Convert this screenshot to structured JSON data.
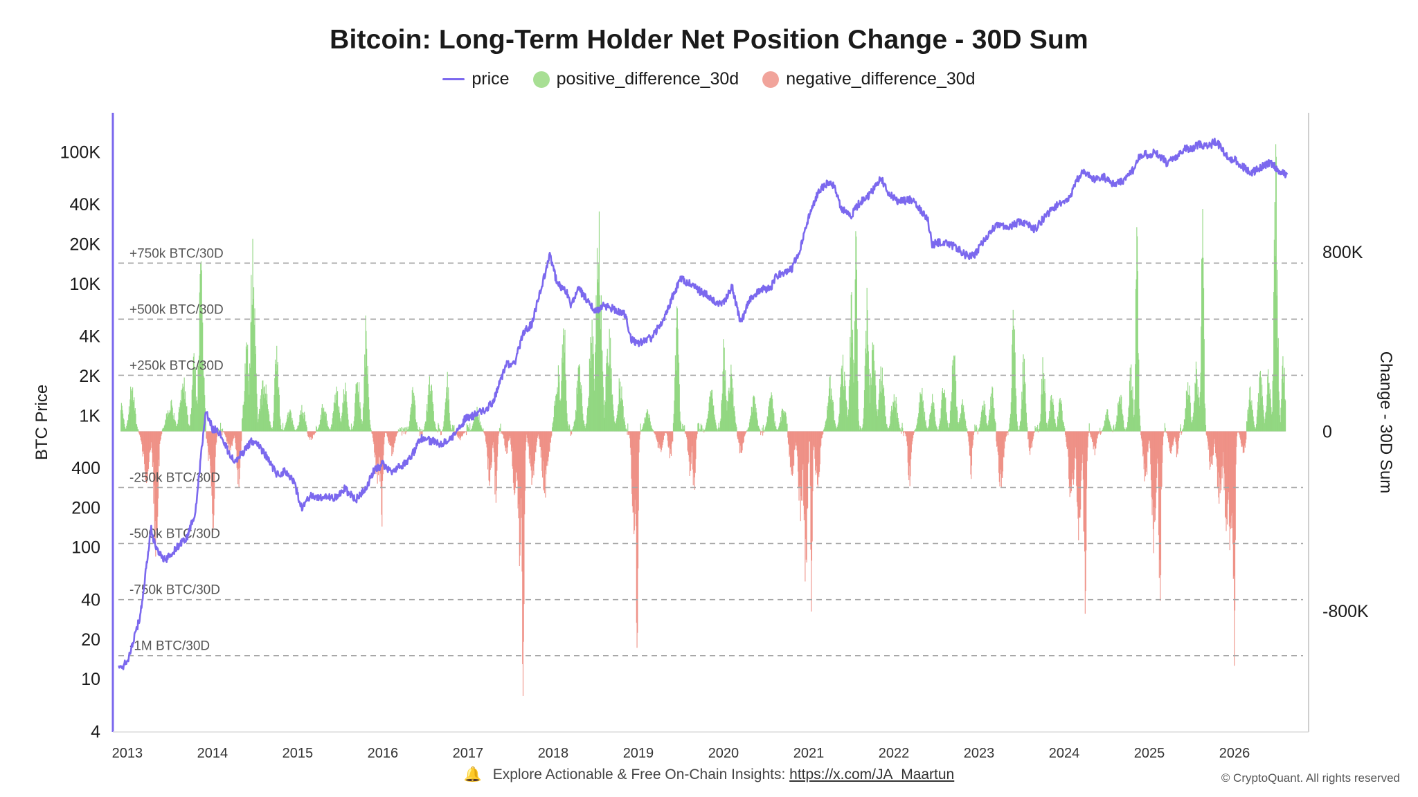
{
  "chart_data": {
    "type": "line+bar",
    "title": "Bitcoin: Long-Term Holder Net Position Change - 30D Sum",
    "legend": [
      {
        "name": "price",
        "color": "#7b68ee",
        "shape": "line"
      },
      {
        "name": "positive_difference_30d",
        "color": "#a8df94",
        "shape": "dot"
      },
      {
        "name": "negative_difference_30d",
        "color": "#f1a49b",
        "shape": "dot"
      }
    ],
    "left_axis": {
      "label": "BTC Price",
      "scale": "log",
      "range": [
        4,
        200000
      ],
      "ticks": [
        4,
        10,
        20,
        40,
        100,
        200,
        400,
        1000,
        2000,
        4000,
        10000,
        20000,
        40000,
        100000
      ],
      "tick_labels": [
        "4",
        "10",
        "20",
        "40",
        "100",
        "200",
        "400",
        "1K",
        "2K",
        "4K",
        "10K",
        "20K",
        "40K",
        "100K"
      ]
    },
    "right_axis": {
      "label": "Change - 30D Sum",
      "range": [
        -1340000,
        1420000
      ],
      "ticks": [
        800000,
        0,
        -800000
      ],
      "tick_labels": [
        "800K",
        "0",
        "-800K"
      ]
    },
    "x_axis": {
      "range": [
        2012.83,
        2026.87
      ],
      "ticks": [
        2013,
        2014,
        2015,
        2016,
        2017,
        2018,
        2019,
        2020,
        2021,
        2022,
        2023,
        2024,
        2025,
        2026
      ],
      "tick_labels": [
        "2013",
        "2014",
        "2015",
        "2016",
        "2017",
        "2018",
        "2019",
        "2020",
        "2021",
        "2022",
        "2023",
        "2024",
        "2025",
        "2026"
      ]
    },
    "reference_lines": [
      {
        "value": 750000,
        "label": "+750k BTC/30D"
      },
      {
        "value": 500000,
        "label": "+500k BTC/30D"
      },
      {
        "value": 250000,
        "label": "+250k BTC/30D"
      },
      {
        "value": -250000,
        "label": "-250k BTC/30D"
      },
      {
        "value": -500000,
        "label": "-500k BTC/30D"
      },
      {
        "value": -750000,
        "label": "-750k BTC/30D"
      },
      {
        "value": -1000000,
        "label": "-1M BTC/30D"
      }
    ],
    "price": [
      [
        2012.9,
        12
      ],
      [
        2013.0,
        13.5
      ],
      [
        2013.15,
        30
      ],
      [
        2013.28,
        140
      ],
      [
        2013.33,
        100
      ],
      [
        2013.45,
        80
      ],
      [
        2013.55,
        95
      ],
      [
        2013.7,
        120
      ],
      [
        2013.8,
        190
      ],
      [
        2013.85,
        400
      ],
      [
        2013.92,
        1100
      ],
      [
        2014.0,
        800
      ],
      [
        2014.08,
        750
      ],
      [
        2014.16,
        580
      ],
      [
        2014.25,
        450
      ],
      [
        2014.35,
        520
      ],
      [
        2014.45,
        640
      ],
      [
        2014.55,
        590
      ],
      [
        2014.65,
        470
      ],
      [
        2014.75,
        360
      ],
      [
        2014.85,
        380
      ],
      [
        2014.95,
        320
      ],
      [
        2015.05,
        200
      ],
      [
        2015.15,
        250
      ],
      [
        2015.3,
        240
      ],
      [
        2015.45,
        240
      ],
      [
        2015.55,
        280
      ],
      [
        2015.68,
        230
      ],
      [
        2015.8,
        280
      ],
      [
        2015.9,
        390
      ],
      [
        2016.0,
        430
      ],
      [
        2016.1,
        380
      ],
      [
        2016.3,
        450
      ],
      [
        2016.45,
        680
      ],
      [
        2016.55,
        650
      ],
      [
        2016.7,
        610
      ],
      [
        2016.85,
        720
      ],
      [
        2016.97,
        960
      ],
      [
        2017.05,
        1000
      ],
      [
        2017.2,
        1100
      ],
      [
        2017.3,
        1300
      ],
      [
        2017.45,
        2500
      ],
      [
        2017.55,
        2500
      ],
      [
        2017.65,
        4300
      ],
      [
        2017.75,
        5000
      ],
      [
        2017.85,
        9000
      ],
      [
        2017.96,
        16500
      ],
      [
        2018.05,
        10000
      ],
      [
        2018.15,
        9000
      ],
      [
        2018.2,
        7000
      ],
      [
        2018.3,
        9200
      ],
      [
        2018.4,
        7600
      ],
      [
        2018.5,
        6300
      ],
      [
        2018.6,
        6900
      ],
      [
        2018.7,
        6500
      ],
      [
        2018.85,
        5800
      ],
      [
        2018.92,
        3800
      ],
      [
        2019.0,
        3600
      ],
      [
        2019.15,
        3900
      ],
      [
        2019.3,
        5400
      ],
      [
        2019.4,
        8000
      ],
      [
        2019.5,
        11000
      ],
      [
        2019.6,
        10200
      ],
      [
        2019.7,
        9000
      ],
      [
        2019.8,
        8300
      ],
      [
        2019.9,
        7300
      ],
      [
        2020.0,
        7200
      ],
      [
        2020.1,
        9600
      ],
      [
        2020.2,
        5000
      ],
      [
        2020.3,
        7500
      ],
      [
        2020.45,
        9300
      ],
      [
        2020.55,
        9200
      ],
      [
        2020.62,
        11500
      ],
      [
        2020.8,
        13000
      ],
      [
        2020.9,
        18500
      ],
      [
        2021.0,
        32000
      ],
      [
        2021.1,
        48000
      ],
      [
        2021.2,
        58000
      ],
      [
        2021.3,
        56000
      ],
      [
        2021.38,
        38000
      ],
      [
        2021.5,
        33000
      ],
      [
        2021.58,
        40000
      ],
      [
        2021.7,
        47000
      ],
      [
        2021.85,
        63000
      ],
      [
        2021.95,
        48000
      ],
      [
        2022.05,
        42000
      ],
      [
        2022.2,
        44000
      ],
      [
        2022.3,
        38000
      ],
      [
        2022.4,
        30000
      ],
      [
        2022.45,
        20000
      ],
      [
        2022.55,
        21000
      ],
      [
        2022.7,
        19500
      ],
      [
        2022.85,
        16500
      ],
      [
        2022.95,
        16700
      ],
      [
        2023.05,
        21000
      ],
      [
        2023.2,
        28000
      ],
      [
        2023.35,
        27000
      ],
      [
        2023.5,
        30000
      ],
      [
        2023.65,
        26000
      ],
      [
        2023.8,
        34000
      ],
      [
        2023.95,
        42000
      ],
      [
        2024.05,
        43000
      ],
      [
        2024.15,
        62000
      ],
      [
        2024.22,
        70000
      ],
      [
        2024.35,
        62000
      ],
      [
        2024.45,
        66000
      ],
      [
        2024.55,
        58000
      ],
      [
        2024.68,
        60000
      ],
      [
        2024.82,
        75000
      ],
      [
        2024.9,
        97000
      ],
      [
        2025.0,
        96000
      ],
      [
        2025.08,
        100000
      ],
      [
        2025.2,
        84000
      ],
      [
        2025.3,
        90000
      ],
      [
        2025.4,
        105000
      ],
      [
        2025.5,
        108000
      ],
      [
        2025.6,
        115000
      ],
      [
        2025.7,
        112000
      ],
      [
        2025.78,
        122000
      ],
      [
        2025.85,
        108000
      ],
      [
        2025.92,
        90000
      ],
      [
        2026.0,
        88000
      ],
      [
        2026.1,
        78000
      ],
      [
        2026.2,
        70000
      ],
      [
        2026.35,
        80000
      ],
      [
        2026.42,
        85000
      ],
      [
        2026.5,
        75000
      ],
      [
        2026.58,
        70000
      ],
      [
        2026.62,
        68000
      ]
    ],
    "net_position_change_spikes": [
      [
        2012.92,
        150000,
        0.05
      ],
      [
        2013.05,
        230000,
        0.06
      ],
      [
        2013.22,
        -230000,
        0.07
      ],
      [
        2013.33,
        -560000,
        0.05
      ],
      [
        2013.5,
        150000,
        0.08
      ],
      [
        2013.65,
        260000,
        0.07
      ],
      [
        2013.78,
        350000,
        0.05
      ],
      [
        2013.86,
        760000,
        0.05
      ],
      [
        2013.98,
        -250000,
        0.06
      ],
      [
        2014.0,
        -450000,
        0.04
      ],
      [
        2014.2,
        -100000,
        0.06
      ],
      [
        2014.3,
        -260000,
        0.04
      ],
      [
        2014.4,
        400000,
        0.06
      ],
      [
        2014.47,
        960000,
        0.05
      ],
      [
        2014.6,
        250000,
        0.08
      ],
      [
        2014.75,
        500000,
        0.04
      ],
      [
        2014.9,
        100000,
        0.06
      ],
      [
        2015.05,
        120000,
        0.06
      ],
      [
        2015.15,
        -40000,
        0.06
      ],
      [
        2015.3,
        140000,
        0.06
      ],
      [
        2015.45,
        200000,
        0.06
      ],
      [
        2015.55,
        220000,
        0.05
      ],
      [
        2015.7,
        290000,
        0.05
      ],
      [
        2015.8,
        540000,
        0.04
      ],
      [
        2015.93,
        -250000,
        0.05
      ],
      [
        2015.98,
        -460000,
        0.03
      ],
      [
        2016.1,
        -110000,
        0.06
      ],
      [
        2016.35,
        200000,
        0.05
      ],
      [
        2016.55,
        250000,
        0.06
      ],
      [
        2016.75,
        270000,
        0.04
      ],
      [
        2016.9,
        -40000,
        0.06
      ],
      [
        2017.1,
        110000,
        0.06
      ],
      [
        2017.25,
        -250000,
        0.05
      ],
      [
        2017.32,
        -330000,
        0.03
      ],
      [
        2017.45,
        -100000,
        0.05
      ],
      [
        2017.55,
        -300000,
        0.06
      ],
      [
        2017.6,
        -600000,
        0.04
      ],
      [
        2017.64,
        -1190000,
        0.03
      ],
      [
        2017.75,
        -250000,
        0.06
      ],
      [
        2017.9,
        -300000,
        0.07
      ],
      [
        2018.05,
        300000,
        0.06
      ],
      [
        2018.12,
        600000,
        0.04
      ],
      [
        2018.3,
        300000,
        0.06
      ],
      [
        2018.45,
        500000,
        0.06
      ],
      [
        2018.53,
        1000000,
        0.06
      ],
      [
        2018.65,
        500000,
        0.06
      ],
      [
        2018.78,
        250000,
        0.06
      ],
      [
        2018.94,
        -500000,
        0.04
      ],
      [
        2018.98,
        -1040000,
        0.025
      ],
      [
        2019.1,
        100000,
        0.06
      ],
      [
        2019.25,
        -100000,
        0.06
      ],
      [
        2019.37,
        -140000,
        0.04
      ],
      [
        2019.45,
        560000,
        0.04
      ],
      [
        2019.6,
        -200000,
        0.04
      ],
      [
        2019.65,
        -300000,
        0.03
      ],
      [
        2019.85,
        200000,
        0.06
      ],
      [
        2020.0,
        430000,
        0.04
      ],
      [
        2020.08,
        300000,
        0.06
      ],
      [
        2020.2,
        -120000,
        0.05
      ],
      [
        2020.35,
        160000,
        0.06
      ],
      [
        2020.55,
        180000,
        0.06
      ],
      [
        2020.7,
        120000,
        0.06
      ],
      [
        2020.8,
        -200000,
        0.06
      ],
      [
        2020.9,
        -400000,
        0.05
      ],
      [
        2020.96,
        -700000,
        0.04
      ],
      [
        2021.03,
        -870000,
        0.02
      ],
      [
        2021.1,
        -300000,
        0.05
      ],
      [
        2021.25,
        250000,
        0.06
      ],
      [
        2021.4,
        350000,
        0.06
      ],
      [
        2021.5,
        650000,
        0.04
      ],
      [
        2021.55,
        900000,
        0.03
      ],
      [
        2021.68,
        640000,
        0.04
      ],
      [
        2021.75,
        400000,
        0.06
      ],
      [
        2021.85,
        300000,
        0.06
      ],
      [
        2022.0,
        200000,
        0.06
      ],
      [
        2022.18,
        -250000,
        0.04
      ],
      [
        2022.32,
        200000,
        0.06
      ],
      [
        2022.45,
        170000,
        0.05
      ],
      [
        2022.58,
        240000,
        0.05
      ],
      [
        2022.7,
        380000,
        0.05
      ],
      [
        2022.8,
        150000,
        0.05
      ],
      [
        2022.9,
        -220000,
        0.03
      ],
      [
        2023.05,
        150000,
        0.05
      ],
      [
        2023.15,
        200000,
        0.05
      ],
      [
        2023.25,
        -260000,
        0.06
      ],
      [
        2023.4,
        580000,
        0.04
      ],
      [
        2023.52,
        350000,
        0.04
      ],
      [
        2023.6,
        -110000,
        0.04
      ],
      [
        2023.75,
        350000,
        0.04
      ],
      [
        2023.85,
        170000,
        0.05
      ],
      [
        2023.95,
        150000,
        0.05
      ],
      [
        2024.08,
        -350000,
        0.06
      ],
      [
        2024.17,
        -500000,
        0.05
      ],
      [
        2024.24,
        -820000,
        0.03
      ],
      [
        2024.35,
        -110000,
        0.05
      ],
      [
        2024.5,
        100000,
        0.05
      ],
      [
        2024.65,
        200000,
        0.05
      ],
      [
        2024.78,
        330000,
        0.04
      ],
      [
        2024.85,
        980000,
        0.03
      ],
      [
        2024.95,
        -250000,
        0.05
      ],
      [
        2025.05,
        -550000,
        0.05
      ],
      [
        2025.12,
        -800000,
        0.03
      ],
      [
        2025.25,
        -100000,
        0.05
      ],
      [
        2025.32,
        -130000,
        0.03
      ],
      [
        2025.45,
        250000,
        0.05
      ],
      [
        2025.55,
        320000,
        0.05
      ],
      [
        2025.62,
        1000000,
        0.03
      ],
      [
        2025.72,
        -200000,
        0.05
      ],
      [
        2025.82,
        -350000,
        0.06
      ],
      [
        2025.9,
        -450000,
        0.05
      ],
      [
        2025.95,
        -600000,
        0.04
      ],
      [
        2025.99,
        -1100000,
        0.025
      ],
      [
        2026.1,
        -100000,
        0.05
      ],
      [
        2026.18,
        200000,
        0.05
      ],
      [
        2026.3,
        270000,
        0.05
      ],
      [
        2026.4,
        300000,
        0.05
      ],
      [
        2026.48,
        1280000,
        0.04
      ],
      [
        2026.57,
        350000,
        0.04
      ]
    ]
  },
  "footer": {
    "icon": "bell-icon",
    "text": "Explore Actionable & Free On-Chain Insights:",
    "link": "https://x.com/JA_Maartun"
  },
  "copyright": "© CryptoQuant. All rights reserved"
}
